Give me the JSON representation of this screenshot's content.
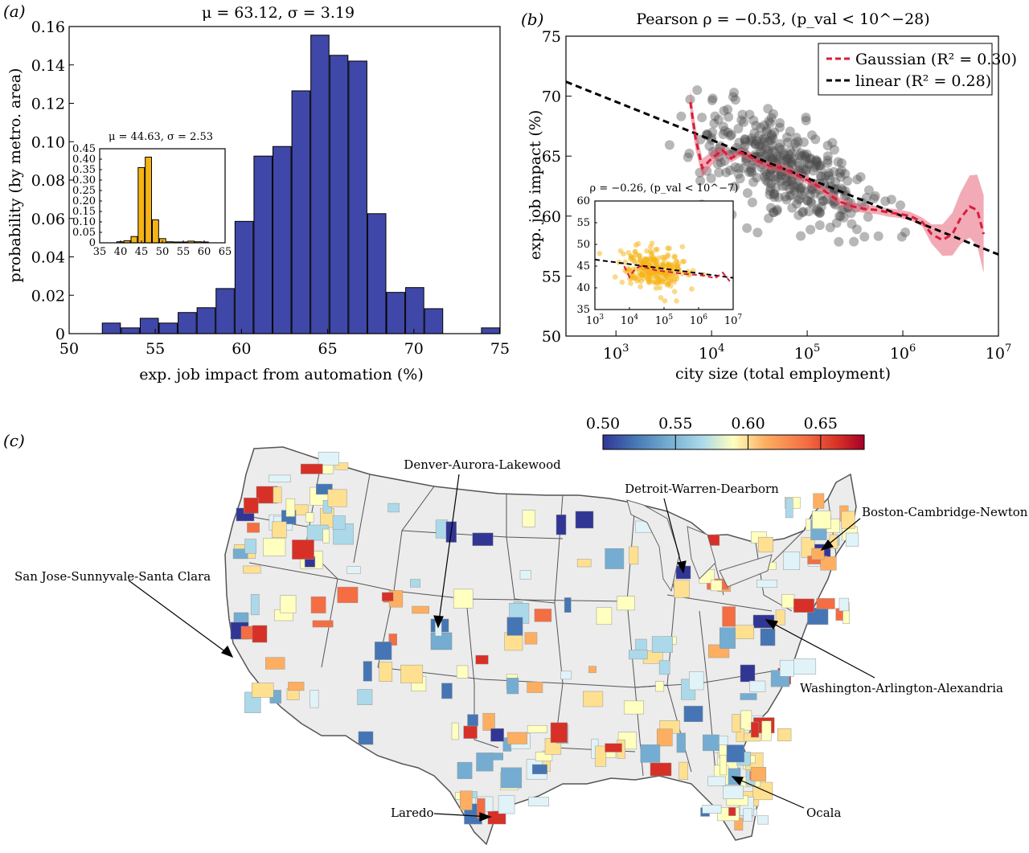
{
  "panels": {
    "a": "(a)",
    "b": "(b)",
    "c": "(c)"
  },
  "chart_data": [
    {
      "id": "a-main",
      "type": "bar",
      "title": "μ = 63.12, σ = 3.19",
      "xlabel": "exp. job impact from automation (%)",
      "ylabel": "probability (by metro. area)",
      "xlim": [
        50,
        75
      ],
      "ylim": [
        0,
        0.16
      ],
      "xticks": [
        "50",
        "55",
        "60",
        "65",
        "70",
        "75"
      ],
      "yticks": [
        "0",
        "0.02",
        "0.04",
        "0.06",
        "0.08",
        "0.10",
        "0.12",
        "0.14",
        "0.16"
      ],
      "bin_width": 1.1,
      "bin_starts": [
        51.9,
        53.0,
        54.1,
        55.2,
        56.3,
        57.4,
        58.5,
        59.6,
        60.7,
        61.8,
        62.9,
        64.0,
        65.1,
        66.2,
        67.3,
        68.4,
        69.5,
        70.6,
        71.7,
        72.8,
        73.9
      ],
      "values": [
        0.0055,
        0.003,
        0.008,
        0.0055,
        0.011,
        0.0135,
        0.0235,
        0.0585,
        0.0925,
        0.0975,
        0.1265,
        0.1555,
        0.145,
        0.142,
        0.0625,
        0.0215,
        0.024,
        0.013,
        0.0,
        0.0,
        0.003
      ],
      "bar_color": "#3f48a8"
    },
    {
      "id": "a-inset",
      "type": "bar",
      "title": "μ = 44.63, σ = 2.53",
      "xlim": [
        35,
        65
      ],
      "ylim": [
        0,
        0.45
      ],
      "xticks": [
        "35",
        "40",
        "45",
        "50",
        "55",
        "60",
        "65"
      ],
      "yticks": [
        "0",
        "0.05",
        "0.10",
        "0.15",
        "0.20",
        "0.25",
        "0.30",
        "0.35",
        "0.40",
        "0.45"
      ],
      "bin_width": 1.7,
      "bin_starts": [
        39.0,
        40.7,
        42.4,
        44.1,
        45.8,
        47.5,
        49.2,
        50.9,
        52.6,
        54.3,
        56.0,
        57.7,
        59.4,
        61.1
      ],
      "values": [
        0.005,
        0.01,
        0.03,
        0.36,
        0.41,
        0.11,
        0.02,
        0.005,
        0.004,
        0.004,
        0.008,
        0.005,
        0.004,
        0.0
      ],
      "bar_color": "#f5b316"
    },
    {
      "id": "b-main",
      "type": "scatter",
      "title": "Pearson ρ = −0.53, (p_val < 10^−28)",
      "xlabel": "city size (total employment)",
      "ylabel": "exp. job impact (%)",
      "xscale": "log",
      "xlim": [
        300,
        10000000
      ],
      "ylim": [
        50,
        75
      ],
      "xticks": [
        1000,
        10000,
        100000,
        1000000,
        10000000
      ],
      "yticks": [
        "50",
        "55",
        "60",
        "65",
        "70",
        "75"
      ],
      "legend": [
        {
          "label": "Gaussian (R² = 0.30)",
          "color": "#d81e3a",
          "style": "dashed"
        },
        {
          "label": "linear (R² = 0.28)",
          "color": "#000000",
          "style": "dashed"
        }
      ],
      "legend_placement": "top-right",
      "point_color": "#4a4a4a",
      "linear_fit": {
        "x": [
          300,
          10000000
        ],
        "y": [
          71.2,
          56.8
        ]
      },
      "gaussian_fit": {
        "x": [
          6000,
          6800,
          8000,
          10000,
          13000,
          16000,
          20000,
          25000,
          30000,
          40000,
          55000,
          70000,
          100000,
          130000,
          170000,
          220000,
          300000,
          400000,
          550000,
          700000,
          900000,
          1200000,
          1600000,
          2000000,
          2600000,
          3300000,
          4000000,
          5000000,
          6000000,
          7000000
        ],
        "y": [
          69.5,
          66.5,
          64.0,
          64.8,
          65.5,
          64.8,
          65.3,
          65.0,
          64.6,
          64.2,
          64.0,
          63.6,
          63.0,
          62.5,
          61.8,
          61.2,
          60.8,
          60.6,
          60.5,
          60.3,
          60.2,
          60.0,
          59.5,
          58.5,
          58.0,
          58.5,
          59.8,
          60.8,
          60.5,
          58.5
        ]
      }
    },
    {
      "id": "b-inset",
      "type": "scatter",
      "title": "ρ = −0.26, (p_val < 10^−7)",
      "xscale": "log",
      "xlim": [
        1000,
        10000000
      ],
      "ylim": [
        35,
        60
      ],
      "xticks": [
        1000,
        10000,
        100000,
        1000000,
        10000000
      ],
      "yticks": [
        "35",
        "40",
        "45",
        "50",
        "55",
        "60"
      ],
      "point_color": "#f5b316",
      "linear_fit": {
        "x": [
          1000,
          10000000
        ],
        "y": [
          46.5,
          42.3
        ]
      },
      "gaussian_fit": {
        "x": [
          7000,
          10000,
          15000,
          22000,
          35000,
          60000,
          100000,
          200000,
          400000,
          800000,
          1500000,
          3000000,
          5000000,
          8000000
        ],
        "y": [
          45.0,
          42.5,
          44.5,
          45.0,
          44.5,
          44.0,
          43.8,
          43.5,
          43.2,
          43.0,
          42.8,
          42.2,
          43.5,
          41.5
        ]
      }
    },
    {
      "id": "c-colorbar",
      "type": "heatmap",
      "colormap": "RdYlBu_r",
      "range": [
        0.5,
        0.68
      ],
      "ticks": [
        "0.50",
        "0.55",
        "0.60",
        "0.65"
      ]
    }
  ],
  "map": {
    "annotations": [
      {
        "id": "denver",
        "label": "Denver-Aurora-Lakewood"
      },
      {
        "id": "detroit",
        "label": "Detroit-Warren-Dearborn"
      },
      {
        "id": "boston",
        "label": "Boston-Cambridge-Newton"
      },
      {
        "id": "sanjose",
        "label": "San Jose-Sunnyvale-Santa Clara"
      },
      {
        "id": "washington",
        "label": "Washington-Arlington-Alexandria"
      },
      {
        "id": "laredo",
        "label": "Laredo"
      },
      {
        "id": "ocala",
        "label": "Ocala"
      }
    ]
  }
}
